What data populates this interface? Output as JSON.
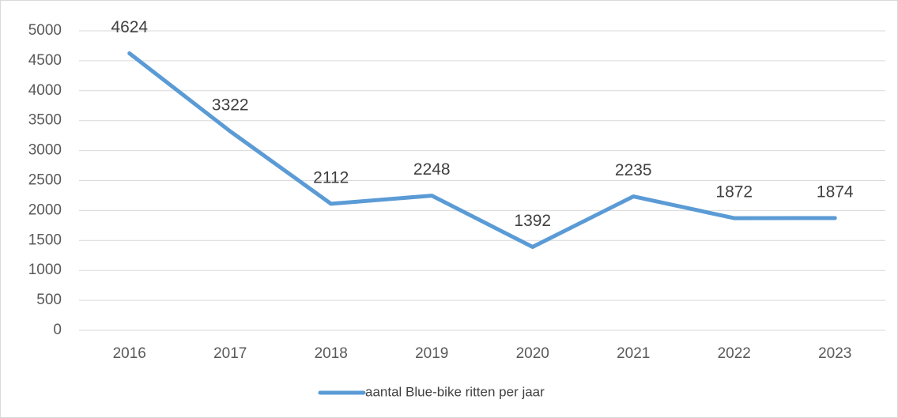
{
  "chart_data": {
    "type": "line",
    "categories": [
      "2016",
      "2017",
      "2018",
      "2019",
      "2020",
      "2021",
      "2022",
      "2023"
    ],
    "series": [
      {
        "name": "aantal Blue-bike ritten per jaar",
        "color": "#5b9bd5",
        "values": [
          4624,
          3322,
          2112,
          2248,
          1392,
          2235,
          1872,
          1874
        ]
      }
    ],
    "ylim": [
      0,
      5000
    ],
    "yticks": [
      0,
      500,
      1000,
      1500,
      2000,
      2500,
      3000,
      3500,
      4000,
      4500,
      5000
    ],
    "grid": true,
    "legend": "bottom"
  }
}
